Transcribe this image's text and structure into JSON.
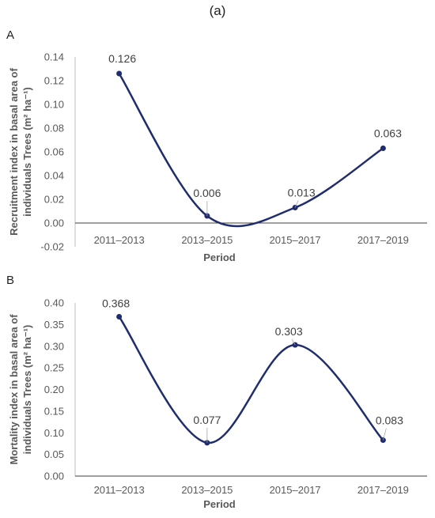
{
  "figure_title": "(a)",
  "chart_data": [
    {
      "panel": "A",
      "type": "line",
      "categories": [
        "2011–2013",
        "2013–2015",
        "2015–2017",
        "2017–2019"
      ],
      "values": [
        0.126,
        0.006,
        0.013,
        0.063
      ],
      "data_labels": [
        "0.126",
        "0.006",
        "0.013",
        "0.063"
      ],
      "xlabel": "Period",
      "ylabel_lines": [
        "Recruitment index in basal area of",
        "individuals Trees  (m² ha⁻¹)"
      ],
      "ylim": [
        -0.02,
        0.14
      ],
      "yticks": [
        -0.02,
        0.0,
        0.02,
        0.04,
        0.06,
        0.08,
        0.1,
        0.12,
        0.14
      ],
      "ytick_labels": [
        "-0.02",
        "0.00",
        "0.02",
        "0.04",
        "0.06",
        "0.08",
        "0.10",
        "0.12",
        "0.14"
      ],
      "smooth": true,
      "line_color": "#1f2d6e",
      "grid": false
    },
    {
      "panel": "B",
      "type": "line",
      "categories": [
        "2011–2013",
        "2013–2015",
        "2015–2017",
        "2017–2019"
      ],
      "values": [
        0.368,
        0.077,
        0.303,
        0.083
      ],
      "data_labels": [
        "0.368",
        "0.077",
        "0.303",
        "0.083"
      ],
      "xlabel": "Period",
      "ylabel_lines": [
        "Mortality index in basal area of",
        "individuals Trees (m² ha⁻¹)"
      ],
      "ylim": [
        0.0,
        0.4
      ],
      "yticks": [
        0.0,
        0.05,
        0.1,
        0.15,
        0.2,
        0.25,
        0.3,
        0.35,
        0.4
      ],
      "ytick_labels": [
        "0.00",
        "0.05",
        "0.10",
        "0.15",
        "0.20",
        "0.25",
        "0.30",
        "0.35",
        "0.40"
      ],
      "smooth": true,
      "line_color": "#1f2d6e",
      "grid": false
    }
  ]
}
